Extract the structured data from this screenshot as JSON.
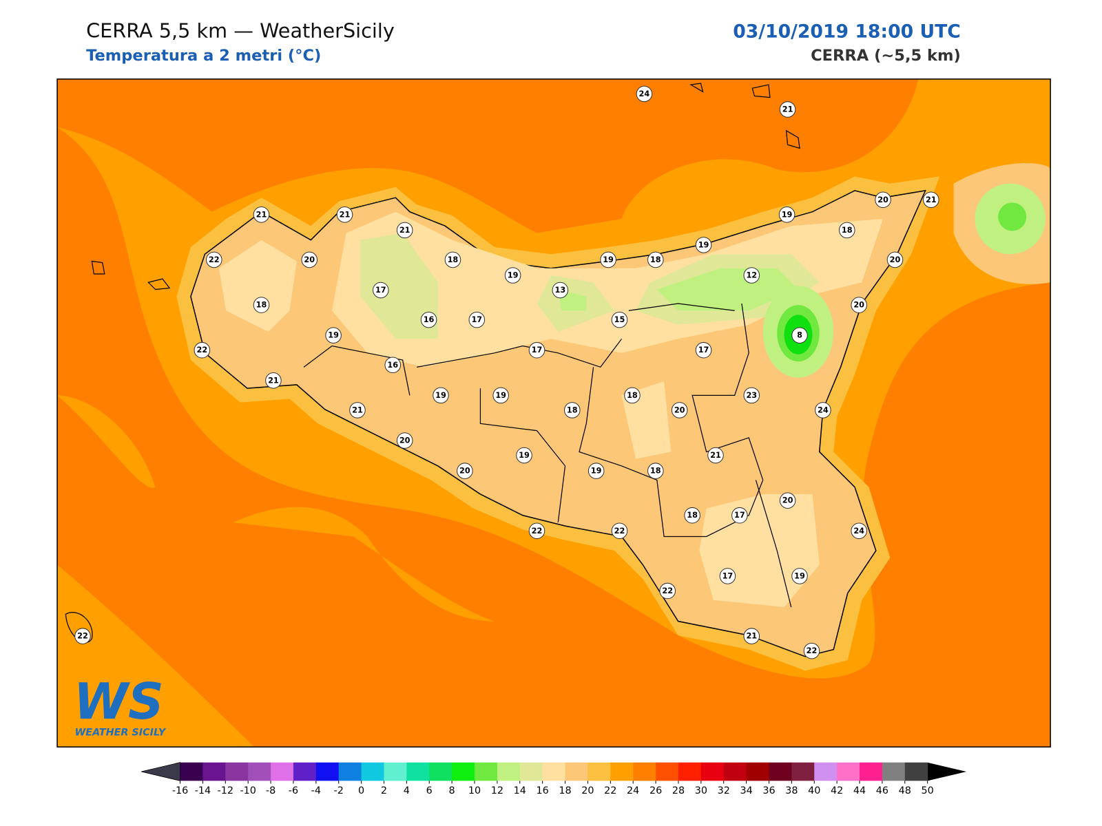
{
  "header": {
    "title": "CERRA 5,5 km — WeatherSicily",
    "subtitle": "Temperatura a 2 metri (°C)",
    "datetime": "03/10/2019 18:00 UTC",
    "model": "CERRA (~5,5 km)"
  },
  "stations": [
    24,
    21,
    21,
    21,
    21,
    22,
    20,
    18,
    19,
    19,
    18,
    19,
    19,
    18,
    20,
    21,
    20,
    12,
    20,
    8,
    17,
    18,
    13,
    16,
    17,
    15,
    19,
    22,
    17,
    17,
    16,
    21,
    19,
    19,
    18,
    23,
    21,
    18,
    20,
    24,
    20,
    19,
    21,
    20,
    19,
    18,
    20,
    18,
    17,
    22,
    22,
    24,
    17,
    19,
    22,
    21,
    22,
    22
  ],
  "colorbar": {
    "ticks": [
      -16,
      -14,
      -12,
      -10,
      -8,
      -6,
      -4,
      -2,
      0,
      2,
      4,
      6,
      8,
      10,
      12,
      14,
      16,
      18,
      20,
      22,
      24,
      26,
      28,
      30,
      32,
      34,
      36,
      38,
      40,
      42,
      44,
      46,
      48,
      50
    ],
    "colors": [
      "#3a0050",
      "#6a1590",
      "#8a35a0",
      "#a050b8",
      "#e070e8",
      "#6020c8",
      "#1010f0",
      "#1080e0",
      "#10c8e0",
      "#60f0d0",
      "#10e0a0",
      "#10e060",
      "#10f010",
      "#70e840",
      "#c0f080",
      "#e0e898",
      "#ffe0a0",
      "#fcc878",
      "#fcc040",
      "#ffa000",
      "#ff8000",
      "#ff5000",
      "#ff2000",
      "#e80010",
      "#c00010",
      "#a00000",
      "#700020",
      "#802040",
      "#d090f0",
      "#ff70c8",
      "#ff2090",
      "#808080",
      "#404040"
    ],
    "under_color": "#3a3a4a",
    "over_color": "#000000"
  },
  "logo": {
    "mark": "WS",
    "name": "WEATHER SICILY"
  }
}
